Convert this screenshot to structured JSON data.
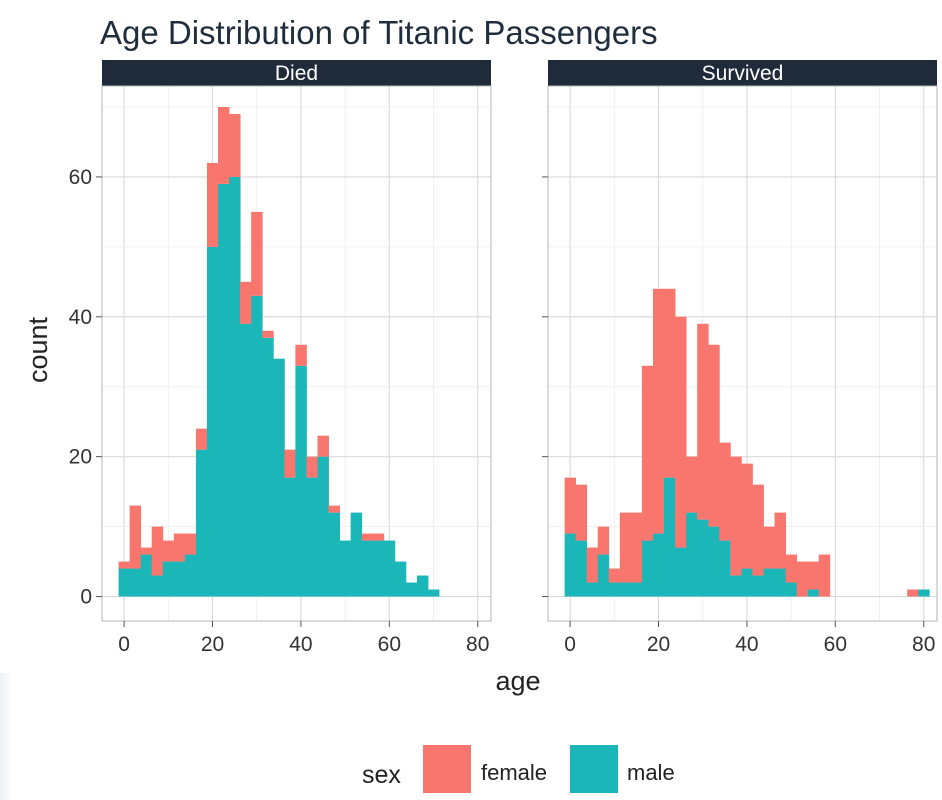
{
  "chart_data": {
    "type": "histogram",
    "title": "Age Distribution of Titanic Passengers",
    "xlabel": "age",
    "ylabel": "count",
    "xlim": [
      -5,
      83
    ],
    "ylim": [
      -3.5,
      73
    ],
    "x_ticks": [
      0,
      20,
      40,
      60,
      80
    ],
    "y_ticks": [
      0,
      20,
      40,
      60
    ],
    "grid": true,
    "stacked": true,
    "bin_width": 2.5,
    "bin_starts": [
      -1.25,
      1.25,
      3.75,
      6.25,
      8.75,
      11.25,
      13.75,
      16.25,
      18.75,
      21.25,
      23.75,
      26.25,
      28.75,
      31.25,
      33.75,
      36.25,
      38.75,
      41.25,
      43.75,
      46.25,
      48.75,
      51.25,
      53.75,
      56.25,
      58.75,
      61.25,
      63.75,
      66.25,
      68.75,
      71.25,
      73.75,
      76.25,
      78.75
    ],
    "legend": {
      "title": "sex",
      "position": "bottom",
      "entries": [
        {
          "label": "female",
          "color": "#f8766d"
        },
        {
          "label": "male",
          "color": "#1bb6b8"
        }
      ]
    },
    "facets": [
      {
        "label": "Died",
        "series": [
          {
            "name": "male",
            "color": "#1bb6b8",
            "values": [
              4,
              4,
              6,
              3,
              5,
              5,
              6,
              21,
              50,
              59,
              60,
              39,
              43,
              37,
              34,
              17,
              33,
              17,
              20,
              12,
              8,
              12,
              8,
              8,
              8,
              5,
              2,
              3,
              1,
              0,
              0,
              0,
              0
            ]
          },
          {
            "name": "female",
            "color": "#f8766d",
            "values": [
              1,
              9,
              1,
              7,
              3,
              4,
              3,
              3,
              12,
              11,
              9,
              6,
              12,
              1,
              0,
              4,
              3,
              3,
              3,
              1,
              0,
              0,
              1,
              1,
              0,
              0,
              0,
              0,
              0,
              0,
              0,
              0,
              0
            ]
          }
        ]
      },
      {
        "label": "Survived",
        "series": [
          {
            "name": "male",
            "color": "#1bb6b8",
            "values": [
              9,
              8,
              2,
              6,
              2,
              2,
              2,
              8,
              9,
              17,
              7,
              12,
              11,
              10,
              8,
              3,
              4,
              3,
              4,
              4,
              2,
              0,
              1,
              0,
              0,
              0,
              0,
              0,
              0,
              0,
              0,
              0,
              1
            ]
          },
          {
            "name": "female",
            "color": "#f8766d",
            "values": [
              8,
              8,
              5,
              4,
              2,
              10,
              10,
              25,
              35,
              27,
              33,
              8,
              28,
              26,
              14,
              17,
              15,
              13,
              6,
              8,
              4,
              5,
              4,
              6,
              0,
              0,
              0,
              0,
              0,
              0,
              0,
              1,
              0
            ]
          }
        ]
      }
    ]
  }
}
